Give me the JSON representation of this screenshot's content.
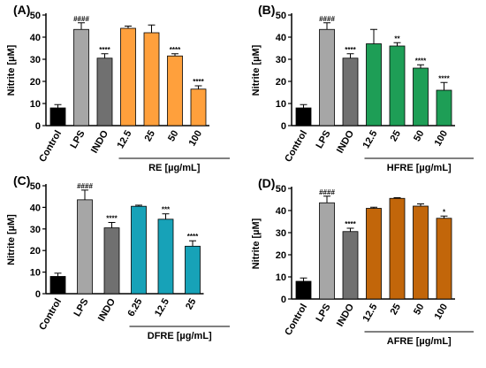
{
  "chart_data": [
    {
      "type": "bar",
      "panel": "(A)",
      "ylabel": "Nitrite [µM]",
      "ylim": [
        0,
        50
      ],
      "yticks": [
        0,
        10,
        20,
        30,
        40,
        50
      ],
      "categories": [
        "Control",
        "LPS",
        "INDO",
        "12.5",
        "25",
        "50",
        "100"
      ],
      "values": [
        8.0,
        43.5,
        30.5,
        44.0,
        42.0,
        31.5,
        16.5
      ],
      "errors": [
        1.5,
        3.0,
        2.0,
        1.0,
        3.5,
        1.0,
        1.5
      ],
      "significance": [
        "",
        "####",
        "****",
        "",
        "",
        "****",
        "****"
      ],
      "group_label": "RE [µg/mL]",
      "group_start": 3,
      "colors": [
        "#000000",
        "#a6a6a6",
        "#707070",
        "#ffa03c",
        "#ffa03c",
        "#ffa03c",
        "#ffa03c"
      ]
    },
    {
      "type": "bar",
      "panel": "(B)",
      "ylabel": "Nitrite [µM]",
      "ylim": [
        0,
        50
      ],
      "yticks": [
        0,
        10,
        20,
        30,
        40,
        50
      ],
      "categories": [
        "Control",
        "LPS",
        "INDO",
        "12.5",
        "25",
        "50",
        "100"
      ],
      "values": [
        8.0,
        43.5,
        30.5,
        37.0,
        36.0,
        26.0,
        16.0
      ],
      "errors": [
        1.5,
        3.0,
        2.0,
        6.5,
        1.5,
        1.5,
        3.5
      ],
      "significance": [
        "",
        "####",
        "****",
        "",
        "**",
        "****",
        "****"
      ],
      "group_label": "HFRE [µg/mL]",
      "group_start": 3,
      "colors": [
        "#000000",
        "#a6a6a6",
        "#707070",
        "#1e9e56",
        "#1e9e56",
        "#1e9e56",
        "#1e9e56"
      ]
    },
    {
      "type": "bar",
      "panel": "(C)",
      "ylabel": "Nitrite [µM]",
      "ylim": [
        0,
        50
      ],
      "yticks": [
        0,
        10,
        20,
        30,
        40,
        50
      ],
      "categories": [
        "Control",
        "LPS",
        "INDO",
        "6.25",
        "12.5",
        "25"
      ],
      "values": [
        8.0,
        43.5,
        30.5,
        40.5,
        34.5,
        22.0
      ],
      "errors": [
        1.5,
        4.5,
        2.5,
        0.5,
        2.5,
        2.5
      ],
      "significance": [
        "",
        "####",
        "****",
        "",
        "***",
        "****"
      ],
      "group_label": "DFRE [µg/mL]",
      "group_start": 3,
      "colors": [
        "#000000",
        "#a6a6a6",
        "#707070",
        "#17a2b8",
        "#17a2b8",
        "#17a2b8"
      ]
    },
    {
      "type": "bar",
      "panel": "(D)",
      "ylabel": "Nitrite [µM]",
      "ylim": [
        0,
        50
      ],
      "yticks": [
        0,
        10,
        20,
        30,
        40,
        50
      ],
      "categories": [
        "Control",
        "LPS",
        "INDO",
        "12.5",
        "25",
        "50",
        "100"
      ],
      "values": [
        8.0,
        43.5,
        30.5,
        41.0,
        45.5,
        42.0,
        36.5
      ],
      "errors": [
        1.5,
        3.0,
        1.5,
        0.5,
        0.3,
        1.0,
        1.0
      ],
      "significance": [
        "",
        "####",
        "****",
        "",
        "",
        "",
        "*"
      ],
      "group_label": "AFRE [µg/mL]",
      "group_start": 3,
      "colors": [
        "#000000",
        "#a6a6a6",
        "#707070",
        "#c2660a",
        "#c2660a",
        "#c2660a",
        "#c2660a"
      ]
    }
  ]
}
